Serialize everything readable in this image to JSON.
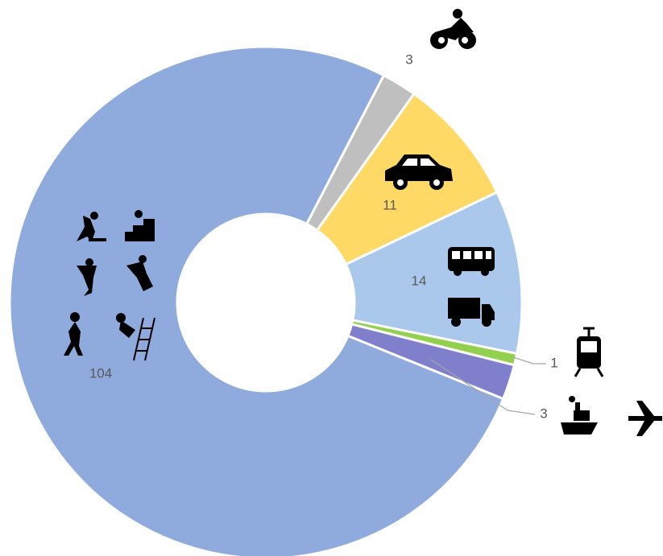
{
  "chart_data": {
    "type": "donut",
    "series": [
      {
        "values": [
          3,
          11,
          14,
          1,
          3,
          104
        ],
        "colors": [
          "#BFBFBF",
          "#FFD966",
          "#A9C8EC",
          "#92D050",
          "#7F7FCC",
          "#8FAADC"
        ]
      }
    ]
  }
}
